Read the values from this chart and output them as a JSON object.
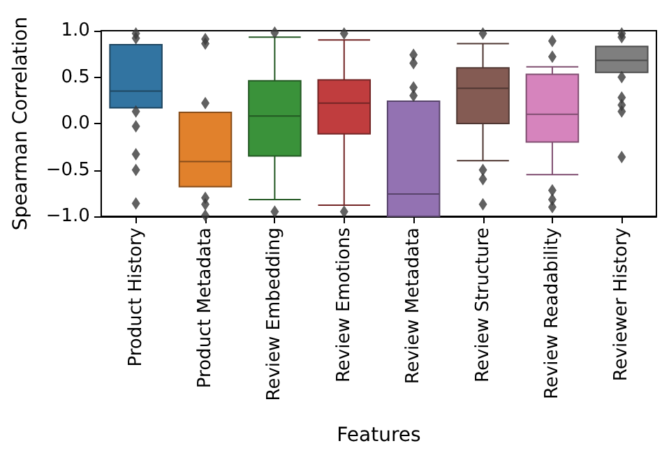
{
  "chart_data": {
    "type": "box",
    "xlabel": "Features",
    "ylabel": "Spearman Correlation",
    "categories": [
      "Product History",
      "Product Metadata",
      "Review Embedding",
      "Review Emotions",
      "Review Metadata",
      "Review Structure",
      "Review Readability",
      "Reviewer History"
    ],
    "colors": [
      "#3274a1",
      "#e1812c",
      "#3a923a",
      "#c03d3e",
      "#9372b2",
      "#845b53",
      "#d684bd",
      "#7f7f7f"
    ],
    "boxes": [
      {
        "low": 0.17,
        "q1": 0.17,
        "median": 0.35,
        "q3": 0.85,
        "high": 0.85,
        "outliers": [
          0.97,
          0.92,
          0.13,
          -0.03,
          -0.33,
          -0.5,
          -0.86
        ]
      },
      {
        "low": -0.68,
        "q1": -0.68,
        "median": -0.41,
        "q3": 0.12,
        "high": 0.12,
        "outliers": [
          0.91,
          0.86,
          0.22,
          -0.8,
          -0.87,
          -0.99
        ]
      },
      {
        "low": -0.82,
        "q1": -0.35,
        "median": 0.08,
        "q3": 0.46,
        "high": 0.93,
        "outliers": [
          0.98,
          -0.95
        ]
      },
      {
        "low": -0.88,
        "q1": -0.11,
        "median": 0.22,
        "q3": 0.47,
        "high": 0.9,
        "outliers": [
          0.97,
          -0.95
        ]
      },
      {
        "low": -1,
        "q1": -1,
        "median": -0.76,
        "q3": 0.24,
        "high": 0.24,
        "outliers": [
          0.74,
          0.65,
          0.39,
          0.3
        ]
      },
      {
        "low": -0.4,
        "q1": 0,
        "median": 0.38,
        "q3": 0.6,
        "high": 0.86,
        "outliers": [
          0.97,
          -0.5,
          -0.6,
          -0.87
        ]
      },
      {
        "low": -0.55,
        "q1": -0.2,
        "median": 0.1,
        "q3": 0.53,
        "high": 0.61,
        "outliers": [
          0.89,
          0.72,
          -0.72,
          -0.82,
          -0.9
        ]
      },
      {
        "low": 0.55,
        "q1": 0.55,
        "median": 0.68,
        "q3": 0.83,
        "high": 0.83,
        "outliers": [
          0.97,
          0.93,
          0.5,
          0.28,
          0.2,
          0.13,
          -0.36
        ]
      }
    ],
    "ylim": [
      -1,
      1
    ],
    "yticks": [
      {
        "value": -1,
        "label": "−1.0"
      },
      {
        "value": -0.5,
        "label": "−0.5"
      },
      {
        "value": 0,
        "label": "0.0"
      },
      {
        "value": 0.5,
        "label": "0.5"
      },
      {
        "value": 1,
        "label": "1.0"
      }
    ],
    "marker": "diamond"
  }
}
